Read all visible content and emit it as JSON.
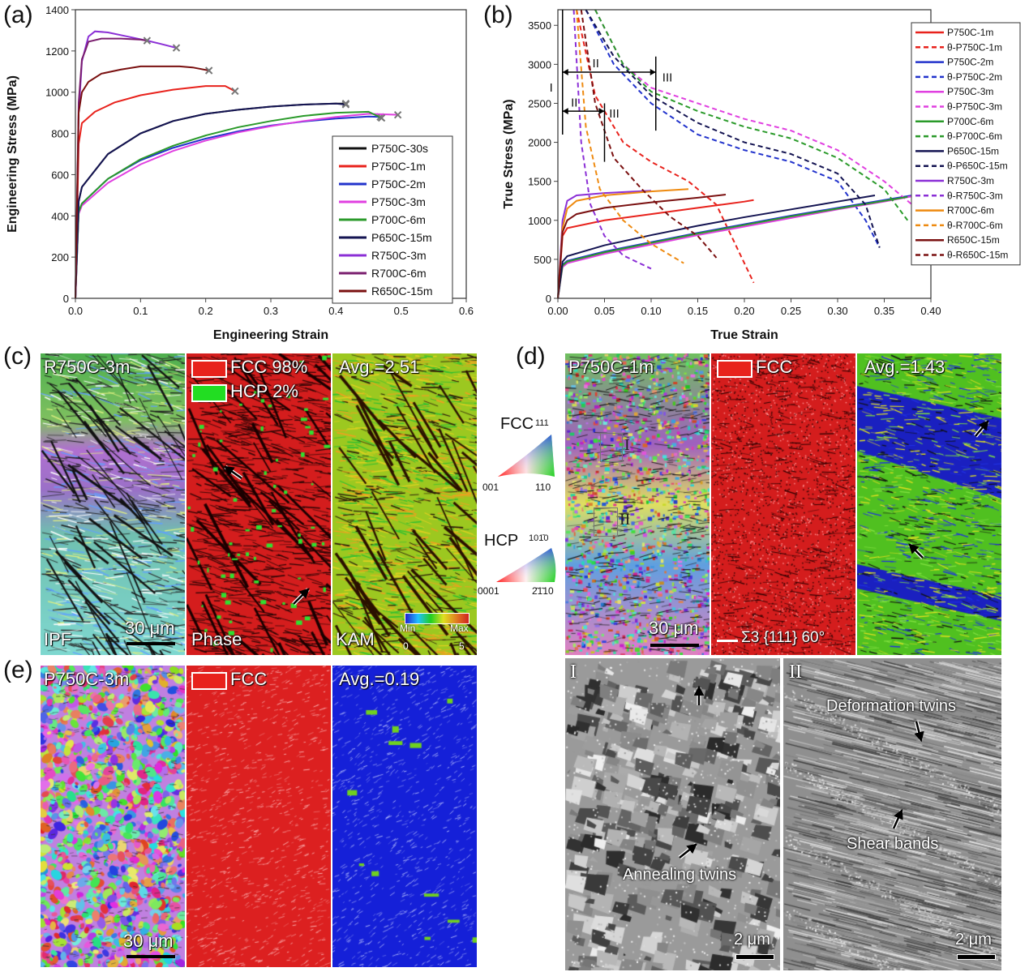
{
  "panels": {
    "a": "(a)",
    "b": "(b)",
    "c": "(c)",
    "d": "(d)",
    "e": "(e)"
  },
  "chart_data": [
    {
      "type": "line",
      "xlabel": "Engineering Strain",
      "ylabel": "Engineering Stress (MPa)",
      "xlim": [
        0,
        0.6
      ],
      "ylim": [
        0,
        1400
      ],
      "xticks": [
        "0.0",
        "0.1",
        "0.2",
        "0.3",
        "0.4",
        "0.5",
        "0.6"
      ],
      "yticks": [
        "0",
        "200",
        "400",
        "600",
        "800",
        "1000",
        "1200",
        "1400"
      ],
      "legend": "bottom-right",
      "series": [
        {
          "name": "P750C-30s",
          "color": "#111111",
          "x": [
            0,
            0.005,
            0.01,
            0.05,
            0.1,
            0.15,
            0.2,
            0.25,
            0.3,
            0.35,
            0.4,
            0.415
          ],
          "y": [
            0,
            470,
            540,
            700,
            800,
            860,
            895,
            915,
            930,
            940,
            945,
            945
          ]
        },
        {
          "name": "P750C-1m",
          "color": "#e8221c",
          "x": [
            0,
            0.005,
            0.01,
            0.03,
            0.06,
            0.1,
            0.15,
            0.2,
            0.23,
            0.245
          ],
          "y": [
            0,
            750,
            850,
            905,
            950,
            985,
            1012,
            1030,
            1030,
            1005
          ]
        },
        {
          "name": "P750C-2m",
          "color": "#2233cc",
          "x": [
            0,
            0.005,
            0.01,
            0.05,
            0.1,
            0.15,
            0.2,
            0.25,
            0.3,
            0.35,
            0.4,
            0.45,
            0.468
          ],
          "y": [
            0,
            420,
            460,
            580,
            670,
            730,
            775,
            810,
            838,
            858,
            872,
            882,
            880
          ]
        },
        {
          "name": "P750C-3m",
          "color": "#e040e0",
          "x": [
            0,
            0.005,
            0.01,
            0.05,
            0.1,
            0.15,
            0.2,
            0.25,
            0.3,
            0.35,
            0.4,
            0.45,
            0.495
          ],
          "y": [
            0,
            410,
            450,
            560,
            650,
            715,
            765,
            805,
            835,
            860,
            880,
            895,
            890
          ]
        },
        {
          "name": "P700C-6m",
          "color": "#2a9a2a",
          "x": [
            0,
            0.005,
            0.01,
            0.05,
            0.1,
            0.15,
            0.2,
            0.25,
            0.3,
            0.35,
            0.4,
            0.45,
            0.47
          ],
          "y": [
            0,
            420,
            460,
            580,
            675,
            740,
            790,
            830,
            860,
            885,
            900,
            905,
            875
          ]
        },
        {
          "name": "P650C-15m",
          "color": "#141452",
          "x": [
            0,
            0.005,
            0.01,
            0.05,
            0.1,
            0.15,
            0.2,
            0.25,
            0.3,
            0.35,
            0.4,
            0.415
          ],
          "y": [
            0,
            470,
            540,
            700,
            800,
            860,
            895,
            915,
            930,
            940,
            945,
            940
          ]
        },
        {
          "name": "R750C-3m",
          "color": "#8b2fd6",
          "x": [
            0,
            0.005,
            0.01,
            0.02,
            0.03,
            0.05,
            0.08,
            0.11,
            0.13,
            0.155
          ],
          "y": [
            0,
            900,
            1150,
            1270,
            1295,
            1290,
            1270,
            1250,
            1235,
            1215
          ]
        },
        {
          "name": "R700C-6m",
          "color": "#7a1e6e",
          "x": [
            0,
            0.005,
            0.01,
            0.015,
            0.02,
            0.04,
            0.07,
            0.1,
            0.11
          ],
          "y": [
            0,
            950,
            1160,
            1200,
            1245,
            1260,
            1260,
            1255,
            1250
          ]
        },
        {
          "name": "R650C-15m",
          "color": "#7a1010",
          "x": [
            0,
            0.005,
            0.01,
            0.02,
            0.04,
            0.07,
            0.1,
            0.13,
            0.16,
            0.18,
            0.205
          ],
          "y": [
            0,
            900,
            1000,
            1050,
            1090,
            1110,
            1125,
            1125,
            1125,
            1120,
            1105
          ]
        }
      ]
    },
    {
      "type": "line",
      "xlabel": "True Strain",
      "ylabel": "True Stress (MPa)",
      "xlim": [
        0,
        0.4
      ],
      "ylim": [
        0,
        3700
      ],
      "xticks": [
        "0.00",
        "0.05",
        "0.10",
        "0.15",
        "0.20",
        "0.25",
        "0.30",
        "0.35",
        "0.40"
      ],
      "yticks": [
        "0",
        "500",
        "1000",
        "1500",
        "2000",
        "2500",
        "3000",
        "3500"
      ],
      "legend": "right",
      "annotations": [
        "I",
        "II",
        "III",
        "II",
        "III"
      ],
      "series": [
        {
          "name": "P750C-1m",
          "color": "#e8221c",
          "dash": false,
          "x": [
            0,
            0.005,
            0.01,
            0.05,
            0.1,
            0.15,
            0.2,
            0.21
          ],
          "y": [
            0,
            800,
            900,
            1000,
            1080,
            1160,
            1240,
            1260
          ]
        },
        {
          "name": "θ-P750C-1m",
          "color": "#e8221c",
          "dash": true,
          "x": [
            0.02,
            0.04,
            0.07,
            0.1,
            0.14,
            0.17,
            0.19,
            0.21
          ],
          "y": [
            3700,
            2600,
            2000,
            1750,
            1500,
            1200,
            700,
            200
          ]
        },
        {
          "name": "P750C-2m",
          "color": "#2233cc",
          "dash": false,
          "x": [
            0,
            0.005,
            0.01,
            0.05,
            0.1,
            0.15,
            0.2,
            0.25,
            0.3,
            0.35,
            0.38
          ],
          "y": [
            0,
            430,
            480,
            600,
            720,
            840,
            950,
            1060,
            1160,
            1260,
            1320
          ]
        },
        {
          "name": "θ-P750C-2m",
          "color": "#2233cc",
          "dash": true,
          "x": [
            0.03,
            0.06,
            0.1,
            0.15,
            0.2,
            0.25,
            0.3,
            0.33,
            0.345
          ],
          "y": [
            3700,
            3000,
            2500,
            2100,
            1900,
            1750,
            1500,
            1000,
            650
          ]
        },
        {
          "name": "P750C-3m",
          "color": "#e040e0",
          "dash": false,
          "x": [
            0,
            0.005,
            0.01,
            0.05,
            0.1,
            0.15,
            0.2,
            0.25,
            0.3,
            0.35,
            0.385
          ],
          "y": [
            0,
            400,
            450,
            570,
            690,
            810,
            920,
            1030,
            1140,
            1240,
            1320
          ]
        },
        {
          "name": "θ-P750C-3m",
          "color": "#e040e0",
          "dash": true,
          "x": [
            0.04,
            0.07,
            0.1,
            0.15,
            0.2,
            0.25,
            0.3,
            0.35,
            0.38
          ],
          "y": [
            3700,
            3000,
            2700,
            2500,
            2300,
            2150,
            1900,
            1500,
            1200
          ]
        },
        {
          "name": "P700C-6m",
          "color": "#2a9a2a",
          "dash": false,
          "x": [
            0,
            0.005,
            0.01,
            0.05,
            0.1,
            0.15,
            0.2,
            0.25,
            0.3,
            0.35,
            0.375
          ],
          "y": [
            0,
            420,
            470,
            590,
            710,
            830,
            940,
            1050,
            1150,
            1250,
            1300
          ]
        },
        {
          "name": "θ-P700C-6m",
          "color": "#2a9a2a",
          "dash": true,
          "x": [
            0.04,
            0.07,
            0.1,
            0.15,
            0.2,
            0.25,
            0.3,
            0.35,
            0.375
          ],
          "y": [
            3700,
            3000,
            2650,
            2400,
            2200,
            2050,
            1800,
            1400,
            1000
          ]
        },
        {
          "name": "P650C-15m",
          "color": "#141452",
          "dash": false,
          "x": [
            0,
            0.005,
            0.01,
            0.05,
            0.1,
            0.15,
            0.2,
            0.25,
            0.3,
            0.34
          ],
          "y": [
            0,
            470,
            540,
            680,
            810,
            930,
            1040,
            1140,
            1240,
            1320
          ]
        },
        {
          "name": "θ-P650C-15m",
          "color": "#141452",
          "dash": true,
          "x": [
            0.03,
            0.06,
            0.1,
            0.15,
            0.2,
            0.25,
            0.3,
            0.33,
            0.345
          ],
          "y": [
            3700,
            3100,
            2600,
            2250,
            2000,
            1850,
            1600,
            1200,
            650
          ]
        },
        {
          "name": "R750C-3m",
          "color": "#8b2fd6",
          "dash": false,
          "x": [
            0,
            0.005,
            0.01,
            0.02,
            0.05,
            0.1
          ],
          "y": [
            0,
            1000,
            1250,
            1320,
            1350,
            1380
          ]
        },
        {
          "name": "θ-R750C-3m",
          "color": "#8b2fd6",
          "dash": true,
          "x": [
            0.017,
            0.025,
            0.035,
            0.05,
            0.07,
            0.1
          ],
          "y": [
            3700,
            2000,
            1200,
            800,
            550,
            380
          ]
        },
        {
          "name": "R700C-6m",
          "color": "#ee8a10",
          "dash": false,
          "x": [
            0,
            0.005,
            0.01,
            0.02,
            0.05,
            0.1,
            0.14
          ],
          "y": [
            0,
            900,
            1150,
            1250,
            1320,
            1370,
            1400
          ]
        },
        {
          "name": "θ-R700C-6m",
          "color": "#ee8a10",
          "dash": true,
          "x": [
            0.02,
            0.03,
            0.045,
            0.07,
            0.1,
            0.135
          ],
          "y": [
            3700,
            2200,
            1400,
            1000,
            700,
            450
          ]
        },
        {
          "name": "R650C-15m",
          "color": "#7a1010",
          "dash": false,
          "x": [
            0,
            0.005,
            0.01,
            0.02,
            0.05,
            0.1,
            0.15,
            0.18
          ],
          "y": [
            0,
            850,
            1000,
            1080,
            1160,
            1230,
            1290,
            1330
          ]
        },
        {
          "name": "θ-R650C-15m",
          "color": "#7a1010",
          "dash": true,
          "x": [
            0.025,
            0.04,
            0.06,
            0.09,
            0.12,
            0.15,
            0.17
          ],
          "y": [
            3700,
            2500,
            1800,
            1400,
            1050,
            800,
            520
          ]
        }
      ]
    }
  ],
  "maps": {
    "c": {
      "sample": "R750C-3m",
      "ipf": "IPF",
      "phase": "Phase",
      "kam": "KAM",
      "fcc_legend": "FCC 98%",
      "hcp_legend": "HCP 2%",
      "avg": "Avg.=2.51",
      "scale": "30 μm",
      "kam_min": "Min",
      "kam_max": "Max",
      "kam_lo": "0",
      "kam_hi": "5"
    },
    "d": {
      "sample": "P750C-1m",
      "fcc_legend": "FCC",
      "avg": "Avg.=1.43",
      "scale": "30 μm",
      "twin_legend": "Σ3 {111} 60°",
      "box1": "I",
      "box2": "II"
    },
    "e": {
      "sample": "P750C-3m",
      "fcc_legend": "FCC",
      "avg": "Avg.=0.19",
      "scale": "30 μm"
    }
  },
  "ipf_key": {
    "fcc": "FCC",
    "fcc_111": "111",
    "fcc_001": "001",
    "fcc_110": "110",
    "hcp": "HCP",
    "hcp_top": "101̄0",
    "hcp_0001": "0001",
    "hcp_2110": "2̄1̄10"
  },
  "sem": {
    "I": {
      "label": "I",
      "annotation": "Annealing twins",
      "scale": "2 μm"
    },
    "II": {
      "label": "II",
      "annotation1": "Deformation twins",
      "annotation2": "Shear bands",
      "scale": "2 μm"
    }
  }
}
